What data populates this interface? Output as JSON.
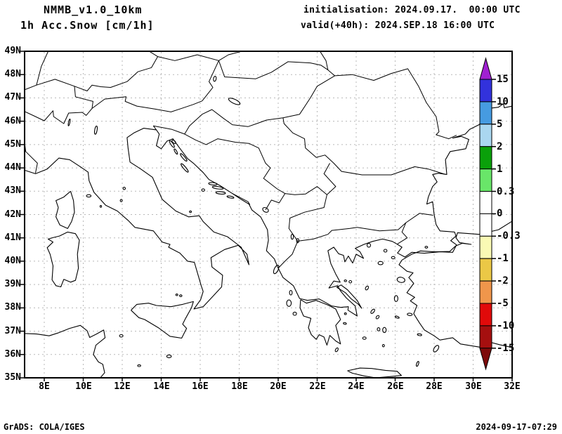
{
  "header": {
    "model_title": "NMMB_v1.0_10km",
    "field_title": "1h Acc.Snow [cm/1h]",
    "init_line": "initialisation: 2024.09.17.  00:00 UTC",
    "valid_line": "valid(+40h): 2024.SEP.18 16:00 UTC"
  },
  "footer": {
    "left": "GrADS: COLA/IGES",
    "right": "2024-09-17-07:29"
  },
  "axes": {
    "lat_labels": [
      "49N",
      "48N",
      "47N",
      "46N",
      "45N",
      "44N",
      "43N",
      "42N",
      "41N",
      "40N",
      "39N",
      "38N",
      "37N",
      "36N",
      "35N"
    ],
    "lon_labels": [
      "8E",
      "10E",
      "12E",
      "14E",
      "16E",
      "18E",
      "20E",
      "22E",
      "24E",
      "26E",
      "28E",
      "30E",
      "32E"
    ]
  },
  "colorbar": {
    "levels": [
      "15",
      "10",
      "5",
      "2",
      "1",
      "0.3",
      "0",
      "-0.3",
      "-1",
      "-2",
      "-5",
      "-10",
      "-15"
    ],
    "segment_colors": [
      "#3232DC",
      "#469BE1",
      "#AAD7F0",
      "#0AA00A",
      "#69E669",
      "#FFFFFF",
      "#FFFFFF",
      "#FAFAB4",
      "#EBC846",
      "#F0964B",
      "#E10A0A",
      "#A50F0F"
    ],
    "arrow_top_color": "#A020D2",
    "arrow_bottom_color": "#7D0A0A"
  },
  "map": {
    "grid_color": "#b8b8b8",
    "line_color": "#000000",
    "coastlines": [
      [
        6.99,
        36.9,
        7.6,
        36.88,
        8.25,
        36.8,
        8.7,
        36.92,
        9.3,
        37.12,
        9.85,
        37.25,
        10.2,
        37.02,
        10.33,
        36.73,
        10.68,
        36.88,
        11.05,
        37.05,
        11.12,
        36.72,
        10.65,
        36.4,
        10.52,
        36.0,
        10.78,
        35.68,
        11.0,
        35.58,
        11.1,
        35.22,
        10.85,
        34.98
      ],
      [
        12.45,
        37.9,
        12.75,
        38.15,
        13.35,
        38.2,
        13.75,
        38.1,
        14.5,
        38.05,
        15.1,
        38.15,
        15.65,
        38.27,
        15.55,
        38.0,
        15.25,
        37.55,
        15.1,
        37.3,
        15.3,
        37.12,
        15.05,
        36.7,
        14.45,
        36.78,
        13.85,
        37.15,
        13.15,
        37.5,
        12.85,
        37.58,
        12.45,
        37.9
      ],
      [
        6.99,
        43.9,
        7.55,
        43.75,
        8.15,
        43.95,
        8.75,
        44.42,
        9.3,
        44.35,
        9.85,
        44.05,
        10.25,
        43.82,
        10.3,
        43.45,
        10.55,
        42.95,
        11.15,
        42.4,
        11.75,
        42.15,
        12.3,
        41.75,
        12.65,
        41.45,
        13.6,
        41.3,
        14.05,
        40.82,
        14.45,
        40.72,
        14.38,
        40.6,
        14.95,
        40.35,
        15.35,
        40.0,
        15.7,
        39.95,
        16.05,
        38.95,
        16.15,
        38.7,
        16.02,
        38.35,
        15.68,
        37.95,
        16.15,
        38.05,
        16.6,
        38.45,
        17.1,
        38.9,
        17.15,
        39.4,
        16.6,
        39.75,
        16.55,
        40.15,
        17.25,
        40.5,
        17.95,
        40.68,
        18.4,
        40.3,
        18.5,
        39.85,
        18.1,
        40.6,
        17.4,
        41.05,
        16.7,
        41.25,
        16.15,
        41.7,
        15.95,
        41.95,
        15.4,
        41.9,
        14.75,
        42.15,
        14.05,
        42.65,
        13.55,
        43.6,
        12.95,
        43.95,
        12.4,
        44.25,
        12.3,
        44.85,
        12.25,
        45.3,
        12.6,
        45.5,
        13.1,
        45.7,
        13.75,
        45.63
      ],
      [
        13.75,
        45.63,
        13.9,
        45.45,
        13.75,
        44.95,
        14.0,
        44.82,
        14.3,
        45.15,
        14.6,
        45.25,
        14.9,
        44.9,
        15.35,
        44.4,
        15.65,
        44.2,
        16.15,
        43.8,
        16.45,
        43.5,
        17.0,
        43.25,
        17.65,
        42.9,
        18.1,
        42.65,
        18.5,
        42.45,
        18.65,
        42.2,
        19.1,
        41.9,
        19.45,
        41.35,
        19.5,
        40.9,
        19.4,
        40.45,
        19.8,
        40.1,
        20.0,
        39.7,
        20.25,
        39.3,
        20.7,
        39.0,
        20.78,
        38.95,
        21.1,
        38.4,
        21.5,
        38.32,
        22.1,
        38.38,
        22.75,
        38.08,
        23.2,
        38.02,
        23.6,
        38.05,
        23.58,
        37.9,
        24.05,
        37.65,
        23.95,
        38.08,
        23.5,
        38.42,
        23.2,
        38.72,
        23.05,
        38.95,
        22.6,
        38.85,
        22.85,
        39.15,
        23.18,
        39.1,
        22.95,
        39.45,
        22.7,
        39.9,
        22.55,
        40.45,
        22.85,
        40.6,
        23.1,
        40.32,
        23.35,
        40.25,
        23.42,
        39.97,
        23.6,
        40.22,
        23.82,
        39.92,
        24.0,
        40.3,
        24.38,
        40.12,
        24.2,
        40.4,
        23.95,
        40.55,
        24.4,
        40.72,
        24.85,
        40.85,
        25.35,
        40.95,
        25.85,
        40.85,
        26.1,
        40.73,
        26.35,
        40.6,
        26.12,
        40.35,
        26.5,
        40.18,
        26.85,
        40.38,
        27.5,
        40.34,
        28.3,
        40.4,
        28.95,
        40.38,
        29.15,
        40.7,
        28.85,
        40.88,
        29.12,
        41.08,
        29.05,
        41.25,
        28.3,
        41.3,
        28.1,
        41.57,
        28.0,
        42.0,
        27.92,
        42.55,
        27.62,
        42.45,
        27.7,
        42.75,
        27.92,
        43.2,
        28.15,
        43.4,
        27.92,
        43.72,
        28.22,
        43.77,
        28.65,
        43.72,
        28.58,
        44.35,
        28.82,
        44.7,
        29.62,
        44.82,
        29.78,
        45.22,
        29.4,
        45.35,
        28.95,
        45.28,
        29.6,
        45.45,
        29.82,
        45.65,
        30.3,
        45.85,
        30.55,
        46.08,
        30.48,
        46.35,
        30.78,
        46.55,
        31.3,
        46.6,
        31.55,
        46.75,
        31.6,
        46.58,
        32.01,
        46.65
      ],
      [
        32.01,
        41.72,
        31.3,
        41.35,
        30.3,
        41.15,
        29.2,
        41.22,
        29.12,
        41.0,
        29.3,
        40.8,
        29.9,
        40.72,
        29.45,
        40.77,
        29.1,
        40.65,
        28.8,
        40.42,
        28.0,
        40.4,
        27.3,
        40.44,
        26.85,
        40.3,
        26.35,
        40.05,
        26.2,
        39.85,
        26.6,
        39.57,
        26.92,
        39.5,
        26.7,
        39.3,
        26.95,
        39.05,
        26.6,
        38.65,
        27.0,
        38.45,
        26.78,
        38.3,
        27.12,
        38.1,
        26.95,
        37.75,
        27.25,
        37.35,
        27.5,
        37.05,
        28.0,
        36.8,
        28.3,
        36.62,
        28.95,
        36.72,
        29.35,
        36.45,
        30.45,
        36.3,
        30.63,
        36.58,
        31.35,
        36.42,
        32.01,
        36.3
      ],
      [
        21.15,
        38.35,
        21.45,
        38.2,
        21.95,
        38.32,
        22.55,
        38.12,
        22.95,
        37.95,
        23.2,
        37.5,
        22.95,
        37.25,
        23.2,
        36.45,
        22.95,
        36.58,
        22.65,
        36.82,
        22.5,
        36.4,
        22.35,
        36.75,
        22.1,
        36.85,
        21.95,
        36.65,
        21.7,
        36.85,
        21.55,
        37.15,
        21.68,
        37.55,
        21.3,
        37.65,
        21.12,
        38.0,
        21.15,
        38.35
      ],
      [
        23.0,
        38.88,
        23.45,
        38.65,
        23.75,
        38.38,
        24.12,
        38.15,
        24.28,
        37.98,
        24.05,
        38.32,
        23.55,
        38.78,
        23.22,
        38.98,
        23.0,
        38.88
      ],
      [
        23.55,
        35.3,
        24.2,
        35.42,
        24.8,
        35.4,
        25.5,
        35.32,
        26.1,
        35.28,
        26.32,
        35.1,
        25.7,
        35.05,
        25.0,
        35.0,
        24.4,
        35.08,
        23.8,
        35.2,
        23.55,
        35.3
      ],
      [
        9.35,
        43.0,
        9.5,
        42.6,
        9.55,
        42.1,
        9.4,
        41.7,
        9.2,
        41.4,
        8.8,
        41.55,
        8.6,
        41.9,
        8.72,
        42.3,
        8.6,
        42.6,
        9.0,
        42.75,
        9.35,
        43.0
      ],
      [
        9.2,
        41.25,
        9.6,
        41.18,
        9.8,
        40.9,
        9.7,
        40.3,
        9.75,
        39.7,
        9.6,
        39.18,
        9.35,
        39.1,
        9.0,
        39.22,
        8.85,
        38.9,
        8.6,
        38.95,
        8.4,
        39.2,
        8.45,
        39.8,
        8.3,
        40.3,
        8.15,
        40.58,
        8.45,
        40.82,
        8.2,
        40.95,
        8.48,
        41.02,
        8.78,
        41.08,
        9.2,
        41.25
      ]
    ],
    "borders": [
      [
        6.99,
        45.1,
        7.05,
        44.7,
        7.65,
        44.2,
        7.55,
        43.78
      ],
      [
        6.99,
        46.42,
        7.55,
        46.2,
        8.0,
        46.02,
        8.45,
        46.45,
        8.48,
        46.2,
        9.0,
        45.9,
        9.25,
        46.35,
        9.95,
        46.38,
        10.15,
        46.25,
        10.45,
        46.55,
        10.5,
        46.85,
        9.6,
        47.05,
        9.55,
        47.5,
        8.55,
        47.8,
        7.6,
        47.55,
        6.99,
        47.35
      ],
      [
        7.6,
        47.55,
        7.85,
        48.35,
        8.2,
        48.99
      ],
      [
        9.55,
        47.5,
        10.2,
        47.3,
        10.45,
        47.55,
        10.9,
        47.48,
        11.4,
        47.45,
        12.25,
        47.7,
        12.8,
        48.12,
        13.5,
        48.3,
        13.82,
        48.77,
        13.4,
        48.99
      ],
      [
        13.82,
        48.77,
        14.7,
        48.6,
        15.85,
        48.85,
        16.95,
        48.6,
        17.45,
        48.85,
        18.1,
        48.99
      ],
      [
        10.45,
        46.55,
        11.1,
        46.95,
        11.65,
        47.0,
        12.2,
        47.05,
        12.15,
        46.85,
        12.75,
        46.65,
        13.7,
        46.52,
        14.5,
        46.4,
        15.65,
        46.72,
        16.1,
        46.87
      ],
      [
        16.95,
        48.6,
        16.45,
        47.7,
        16.65,
        47.45,
        16.1,
        46.87
      ],
      [
        16.95,
        48.6,
        17.25,
        47.9,
        18.85,
        47.82,
        19.65,
        48.1,
        20.5,
        48.55,
        21.65,
        48.5,
        22.2,
        48.4,
        22.55,
        48.2,
        22.9,
        47.95
      ],
      [
        22.55,
        48.2,
        22.45,
        48.6,
        22.15,
        48.99
      ],
      [
        13.75,
        45.63,
        13.6,
        45.8,
        14.55,
        45.65,
        15.2,
        45.45,
        15.45,
        45.8,
        16.1,
        46.3,
        16.6,
        46.5,
        17.2,
        46.12,
        17.65,
        45.85,
        18.45,
        45.77,
        18.9,
        45.9,
        19.4,
        46.05,
        20.25,
        46.15
      ],
      [
        15.2,
        45.45,
        15.75,
        45.2,
        16.3,
        45.0,
        16.9,
        45.25,
        17.8,
        45.1,
        18.5,
        45.05,
        19.0,
        44.85,
        19.35,
        44.2,
        19.6,
        44.0,
        19.25,
        43.55,
        19.95,
        43.1,
        20.35,
        42.9,
        20.05,
        42.5,
        19.65,
        42.62,
        19.35,
        42.2
      ],
      [
        17.65,
        42.9,
        18.45,
        42.55,
        18.55,
        42.42
      ],
      [
        20.35,
        42.9,
        20.85,
        42.85,
        21.4,
        42.88,
        22.0,
        43.2,
        22.5,
        42.85,
        22.35,
        42.3,
        21.35,
        42.1,
        20.6,
        41.85,
        20.55,
        41.4,
        21.0,
        40.86
      ],
      [
        22.5,
        42.85,
        22.95,
        43.2,
        22.35,
        43.75,
        22.65,
        44.2
      ],
      [
        20.25,
        46.15,
        21.1,
        46.3,
        21.65,
        47.0,
        22.0,
        47.5,
        22.9,
        47.95,
        23.8,
        48.0,
        24.9,
        47.75,
        25.8,
        48.05,
        26.65,
        48.25,
        27.2,
        47.5,
        27.6,
        46.8,
        28.1,
        46.2,
        28.25,
        45.55,
        28.1,
        45.42,
        28.75,
        45.25,
        29.15,
        45.4
      ],
      [
        28.58,
        43.72,
        27.7,
        43.95,
        27.0,
        44.05,
        25.8,
        43.7,
        24.3,
        43.7,
        23.25,
        43.85,
        22.85,
        44.2,
        22.4,
        44.55,
        21.95,
        44.45,
        21.4,
        44.85,
        21.35,
        45.25,
        20.75,
        45.5,
        20.3,
        45.9,
        20.25,
        46.15
      ],
      [
        21.0,
        40.86,
        21.8,
        40.95,
        22.55,
        41.15,
        22.75,
        41.32,
        23.65,
        41.4,
        24.05,
        41.45
      ],
      [
        20.0,
        39.7,
        20.35,
        40.0,
        20.72,
        40.3,
        21.0,
        40.86
      ],
      [
        24.05,
        41.45,
        25.2,
        41.3,
        26.15,
        41.35,
        26.55,
        41.65,
        27.25,
        42.05,
        27.95,
        41.97
      ],
      [
        26.55,
        41.65,
        26.35,
        41.25,
        26.62,
        41.0,
        26.1,
        40.73
      ]
    ],
    "islands": [
      [
        11.95,
        36.8,
        0.09,
        0.05,
        0
      ],
      [
        14.4,
        35.92,
        0.12,
        0.06,
        0
      ],
      [
        12.87,
        35.52,
        0.08,
        0.04,
        0
      ],
      [
        10.28,
        42.8,
        0.12,
        0.05,
        0
      ],
      [
        15.0,
        38.52,
        0.06,
        0.04,
        0
      ],
      [
        14.8,
        38.56,
        0.05,
        0.035,
        0
      ],
      [
        15.5,
        42.12,
        0.05,
        0.035,
        0
      ],
      [
        10.9,
        42.35,
        0.04,
        0.04,
        0
      ],
      [
        14.55,
        45.02,
        0.2,
        0.05,
        55
      ],
      [
        14.75,
        44.7,
        0.15,
        0.04,
        60
      ],
      [
        14.65,
        45.12,
        0.12,
        0.05,
        40
      ],
      [
        15.15,
        44.45,
        0.25,
        0.05,
        50
      ],
      [
        15.2,
        44.0,
        0.28,
        0.05,
        50
      ],
      [
        16.65,
        43.32,
        0.22,
        0.05,
        5
      ],
      [
        16.9,
        43.15,
        0.28,
        0.05,
        8
      ],
      [
        17.05,
        42.93,
        0.25,
        0.05,
        5
      ],
      [
        17.55,
        42.75,
        0.18,
        0.04,
        12
      ],
      [
        16.15,
        43.05,
        0.08,
        0.05,
        0
      ],
      [
        19.9,
        39.65,
        0.1,
        0.2,
        25
      ],
      [
        20.65,
        38.65,
        0.07,
        0.1,
        0
      ],
      [
        20.55,
        38.2,
        0.12,
        0.14,
        0
      ],
      [
        20.85,
        37.75,
        0.09,
        0.07,
        0
      ],
      [
        23.0,
        36.2,
        0.06,
        0.09,
        30
      ],
      [
        24.65,
        40.68,
        0.09,
        0.08,
        0
      ],
      [
        25.5,
        40.45,
        0.08,
        0.06,
        0
      ],
      [
        25.25,
        39.92,
        0.13,
        0.07,
        0
      ],
      [
        26.3,
        39.2,
        0.2,
        0.11,
        10
      ],
      [
        26.05,
        38.4,
        0.09,
        0.13,
        0
      ],
      [
        26.75,
        37.72,
        0.13,
        0.05,
        5
      ],
      [
        26.1,
        37.6,
        0.11,
        0.035,
        20
      ],
      [
        24.85,
        37.85,
        0.07,
        0.11,
        40
      ],
      [
        25.1,
        37.6,
        0.06,
        0.08,
        40
      ],
      [
        25.45,
        37.05,
        0.09,
        0.11,
        0
      ],
      [
        25.15,
        37.08,
        0.07,
        0.07,
        0
      ],
      [
        24.42,
        36.7,
        0.09,
        0.05,
        0
      ],
      [
        25.4,
        36.38,
        0.05,
        0.05,
        0
      ],
      [
        27.25,
        36.85,
        0.11,
        0.04,
        10
      ],
      [
        28.1,
        36.25,
        0.1,
        0.16,
        35
      ],
      [
        27.15,
        35.6,
        0.05,
        0.11,
        20
      ],
      [
        24.55,
        38.85,
        0.07,
        0.09,
        30
      ],
      [
        23.7,
        39.12,
        0.07,
        0.05,
        0
      ],
      [
        23.45,
        39.16,
        0.06,
        0.04,
        0
      ],
      [
        23.45,
        37.75,
        0.05,
        0.04,
        0
      ],
      [
        23.42,
        37.33,
        0.08,
        0.035,
        15
      ],
      [
        25.9,
        40.15,
        0.09,
        0.05,
        0
      ],
      [
        27.6,
        40.6,
        0.07,
        0.04,
        0
      ]
    ],
    "lakes": [
      [
        10.65,
        45.62,
        0.06,
        0.18,
        10
      ],
      [
        9.28,
        45.95,
        0.035,
        0.15,
        12
      ],
      [
        17.75,
        46.85,
        0.32,
        0.09,
        25
      ],
      [
        16.75,
        47.82,
        0.07,
        0.11,
        10
      ],
      [
        19.35,
        42.2,
        0.16,
        0.09,
        30
      ],
      [
        20.72,
        41.05,
        0.06,
        0.11,
        0
      ],
      [
        21.0,
        40.88,
        0.06,
        0.09,
        0
      ],
      [
        12.1,
        43.12,
        0.06,
        0.05,
        0
      ],
      [
        11.95,
        42.6,
        0.05,
        0.05,
        0
      ]
    ]
  }
}
